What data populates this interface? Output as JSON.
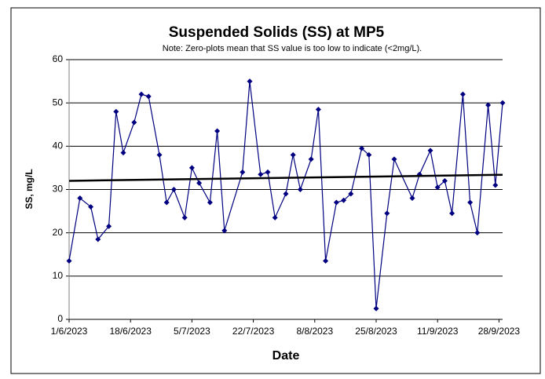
{
  "chart_data": {
    "type": "line",
    "title": "Suspended Solids (SS) at MP5",
    "subtitle": "Note: Zero-plots mean that SS value is too low to indicate (<2mg/L).",
    "x_label": "Date",
    "y_label": "SS, mg/L",
    "x": [
      "2023-06-01",
      "2023-06-04",
      "2023-06-07",
      "2023-06-09",
      "2023-06-12",
      "2023-06-14",
      "2023-06-16",
      "2023-06-19",
      "2023-06-21",
      "2023-06-23",
      "2023-06-26",
      "2023-06-28",
      "2023-06-30",
      "2023-07-03",
      "2023-07-05",
      "2023-07-07",
      "2023-07-10",
      "2023-07-12",
      "2023-07-14",
      "2023-07-19",
      "2023-07-21",
      "2023-07-24",
      "2023-07-26",
      "2023-07-28",
      "2023-07-31",
      "2023-08-02",
      "2023-08-04",
      "2023-08-07",
      "2023-08-09",
      "2023-08-11",
      "2023-08-14",
      "2023-08-16",
      "2023-08-18",
      "2023-08-21",
      "2023-08-23",
      "2023-08-25",
      "2023-08-28",
      "2023-08-30",
      "2023-09-04",
      "2023-09-06",
      "2023-09-09",
      "2023-09-11",
      "2023-09-13",
      "2023-09-15",
      "2023-09-18",
      "2023-09-20",
      "2023-09-22",
      "2023-09-25",
      "2023-09-27",
      "2023-09-29"
    ],
    "series": [
      {
        "color": "#000080",
        "values": [
          13.5,
          28,
          26,
          18.5,
          21.5,
          48,
          38.5,
          45.5,
          52,
          51.5,
          38,
          27,
          30,
          23.5,
          35,
          31.5,
          27,
          43.5,
          20.5,
          34,
          55,
          33.5,
          34,
          23.5,
          29,
          38,
          30,
          37,
          48.5,
          13.5,
          27,
          27.5,
          29,
          39.5,
          38,
          2.5,
          24.5,
          37,
          28,
          33.5,
          39,
          30.5,
          32,
          24.5,
          52,
          27,
          20,
          49.5,
          31,
          50
        ]
      }
    ],
    "trend": {
      "start": 32,
      "end": 33.4,
      "color": "#000000"
    },
    "xlim": [
      "2023-06-01",
      "2023-09-29"
    ],
    "xticks": [
      {
        "value": "2023-06-01",
        "label": "1/6/2023"
      },
      {
        "value": "2023-06-18",
        "label": "18/6/2023"
      },
      {
        "value": "2023-07-05",
        "label": "5/7/2023"
      },
      {
        "value": "2023-07-22",
        "label": "22/7/2023"
      },
      {
        "value": "2023-08-08",
        "label": "8/8/2023"
      },
      {
        "value": "2023-08-25",
        "label": "25/8/2023"
      },
      {
        "value": "2023-09-11",
        "label": "11/9/2023"
      },
      {
        "value": "2023-09-28",
        "label": "28/9/2023"
      }
    ],
    "ylim": [
      0,
      60
    ],
    "yticks": [
      0,
      10,
      20,
      30,
      40,
      50,
      60
    ],
    "grid": true
  }
}
